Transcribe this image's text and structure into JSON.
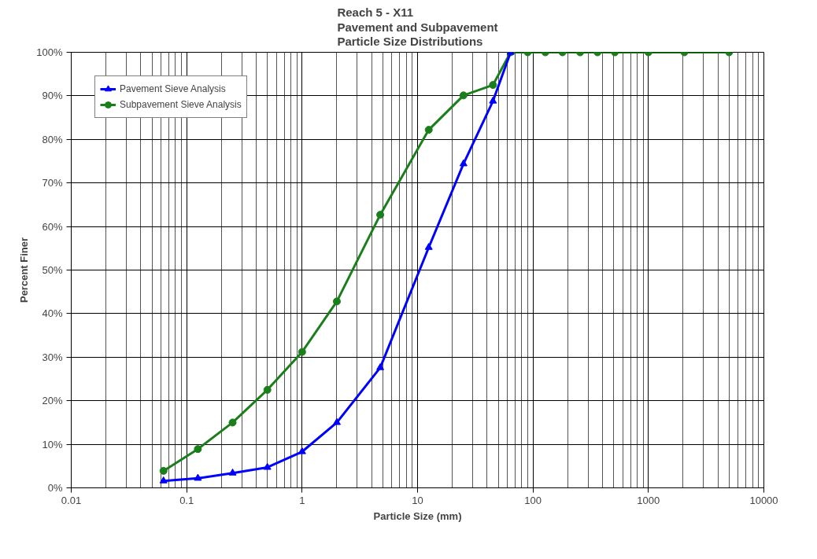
{
  "chart_data": {
    "type": "line",
    "title": "Reach 5 - X11\nPavement and Subpavement\nParticle Size Distributions",
    "xlabel": "Particle Size (mm)",
    "ylabel": "Percent Finer",
    "log": "x",
    "xlim": [
      0.01,
      10000
    ],
    "xticks": [
      0.01,
      0.1,
      1,
      10,
      100,
      1000,
      10000
    ],
    "ylim": [
      0,
      100
    ],
    "yticks": [
      {
        "value": 0,
        "label": "0%"
      },
      {
        "value": 10,
        "label": "10%"
      },
      {
        "value": 20,
        "label": "20%"
      },
      {
        "value": 30,
        "label": "30%"
      },
      {
        "value": 40,
        "label": "40%"
      },
      {
        "value": 50,
        "label": "50%"
      },
      {
        "value": 60,
        "label": "60%"
      },
      {
        "value": 70,
        "label": "70%"
      },
      {
        "value": 80,
        "label": "80%"
      },
      {
        "value": 90,
        "label": "90%"
      },
      {
        "value": 100,
        "label": "100%"
      }
    ],
    "grid": true,
    "legend": "top left",
    "line_style": "solid",
    "series": [
      {
        "name": "Pavement Sieve Analysis",
        "color": "#0000ff",
        "marker": "triangle",
        "x": [
          0.063,
          0.125,
          0.25,
          0.5,
          1,
          2,
          4.75,
          12.5,
          25,
          45,
          64
        ],
        "values": [
          1.6,
          2.2,
          3.4,
          4.7,
          8.3,
          15,
          27.6,
          55.2,
          74.4,
          88.8,
          100
        ]
      },
      {
        "name": "Subpavement Sieve Analysis",
        "color": "#1a7f1a",
        "marker": "circle",
        "x": [
          0.063,
          0.125,
          0.25,
          0.5,
          1,
          2,
          4.75,
          12.5,
          25,
          45,
          64,
          90,
          128,
          180,
          256,
          362,
          512,
          1000,
          2048,
          5000
        ],
        "values": [
          3.9,
          8.9,
          15,
          22.5,
          31.2,
          42.8,
          62.7,
          82.2,
          90.1,
          92.5,
          100,
          100,
          100,
          100,
          100,
          100,
          100,
          100,
          100,
          100
        ]
      }
    ]
  }
}
